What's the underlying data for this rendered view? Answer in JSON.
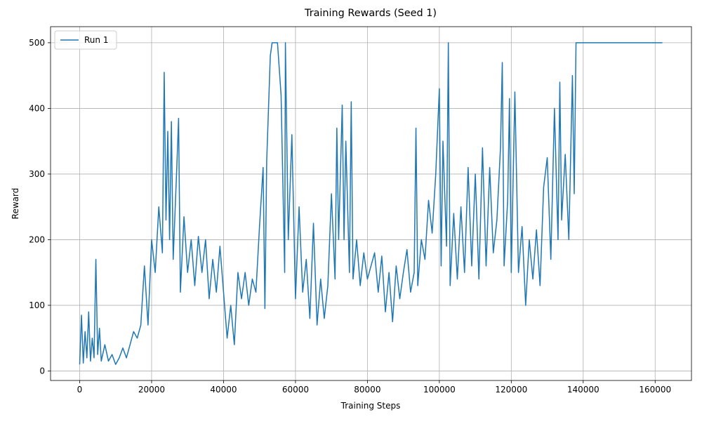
{
  "chart_data": {
    "type": "line",
    "title": "Training Rewards (Seed 1)",
    "x_label": "Training Steps",
    "y_label": "Reward",
    "x": [
      0,
      500,
      1000,
      1500,
      2000,
      2500,
      3000,
      3500,
      4000,
      4500,
      5000,
      5500,
      6000,
      7000,
      8000,
      9000,
      10000,
      11000,
      12000,
      13000,
      14000,
      15000,
      16000,
      17000,
      18000,
      19000,
      20000,
      21000,
      22000,
      23000,
      23500,
      24000,
      24500,
      25000,
      25500,
      26000,
      27000,
      27500,
      28000,
      29000,
      30000,
      31000,
      32000,
      33000,
      34000,
      35000,
      36000,
      37000,
      38000,
      39000,
      40000,
      41000,
      42000,
      43000,
      44000,
      45000,
      46000,
      47000,
      48000,
      49000,
      50000,
      51000,
      51500,
      52000,
      53000,
      53500,
      55000,
      56000,
      57000,
      57200,
      58000,
      59000,
      60000,
      61000,
      62000,
      63000,
      64000,
      65000,
      66000,
      67000,
      68000,
      69000,
      70000,
      71000,
      71500,
      72000,
      73000,
      73500,
      74000,
      75000,
      75500,
      76000,
      77000,
      78000,
      79000,
      80000,
      81000,
      82000,
      83000,
      84000,
      85000,
      86000,
      87000,
      88000,
      89000,
      90000,
      91000,
      92000,
      93000,
      93500,
      94000,
      95000,
      96000,
      97000,
      98000,
      99000,
      100000,
      100500,
      101000,
      102000,
      102500,
      103000,
      104000,
      105000,
      106000,
      107000,
      108000,
      109000,
      110000,
      111000,
      112000,
      113000,
      114000,
      115000,
      116000,
      117000,
      117500,
      118000,
      119000,
      119500,
      120000,
      121000,
      122000,
      123000,
      124000,
      125000,
      126000,
      127000,
      128000,
      129000,
      130000,
      131000,
      132000,
      133000,
      133500,
      134000,
      135000,
      136000,
      137000,
      137500,
      138000,
      162000
    ],
    "series": [
      {
        "name": "Run 1",
        "color": "#1f77b4",
        "values": [
          10,
          85,
          12,
          60,
          20,
          90,
          15,
          50,
          20,
          170,
          25,
          65,
          15,
          40,
          15,
          25,
          10,
          20,
          35,
          20,
          40,
          60,
          50,
          70,
          160,
          70,
          200,
          150,
          250,
          180,
          455,
          230,
          365,
          200,
          380,
          170,
          310,
          385,
          120,
          235,
          150,
          200,
          130,
          205,
          150,
          200,
          110,
          170,
          120,
          190,
          120,
          50,
          100,
          40,
          150,
          110,
          150,
          100,
          140,
          120,
          220,
          310,
          95,
          320,
          480,
          500,
          500,
          420,
          150,
          500,
          200,
          360,
          110,
          250,
          120,
          170,
          80,
          225,
          70,
          140,
          80,
          130,
          270,
          140,
          370,
          200,
          405,
          200,
          350,
          150,
          410,
          140,
          200,
          130,
          180,
          140,
          160,
          180,
          120,
          175,
          90,
          150,
          75,
          160,
          110,
          150,
          185,
          120,
          150,
          370,
          130,
          200,
          170,
          260,
          210,
          300,
          430,
          160,
          350,
          190,
          500,
          130,
          240,
          140,
          250,
          150,
          310,
          160,
          300,
          140,
          340,
          160,
          310,
          180,
          230,
          340,
          470,
          160,
          260,
          415,
          150,
          425,
          150,
          220,
          100,
          200,
          140,
          215,
          130,
          280,
          325,
          170,
          400,
          200,
          440,
          230,
          330,
          200,
          450,
          270,
          500,
          500
        ]
      }
    ],
    "xlim": [
      -8100,
      170100
    ],
    "ylim": [
      -14.5,
      524.5
    ],
    "xticks": [
      0,
      20000,
      40000,
      60000,
      80000,
      100000,
      120000,
      140000,
      160000
    ],
    "yticks": [
      0,
      100,
      200,
      300,
      400,
      500
    ],
    "grid": true,
    "legend": "upper left"
  }
}
